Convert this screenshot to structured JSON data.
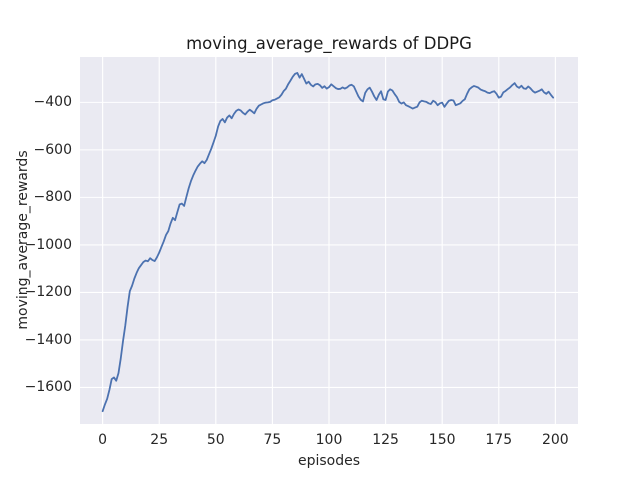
{
  "chart_data": {
    "type": "line",
    "title": "moving_average_rewards of DDPG",
    "xlabel": "episodes",
    "ylabel": "moving_average_rewards",
    "xlim": [
      -10,
      210
    ],
    "ylim": [
      -1754,
      -209
    ],
    "grid": true,
    "legend": false,
    "xticks": {
      "values": [
        0,
        25,
        50,
        75,
        100,
        125,
        150,
        175,
        200
      ],
      "labels": [
        "0",
        "25",
        "50",
        "75",
        "100",
        "125",
        "150",
        "175",
        "200"
      ]
    },
    "yticks": {
      "values": [
        -400,
        -600,
        -800,
        -1000,
        -1200,
        -1400,
        -1600
      ],
      "labels": [
        "−400",
        "−600",
        "−800",
        "−1000",
        "−1200",
        "−1400",
        "−1600"
      ]
    },
    "style": {
      "line_color": "#4C72B0",
      "line_width": 1.8,
      "plot_bg": "#EAEAF2",
      "grid_color": "#FFFFFF",
      "fig_bg": "#FFFFFF",
      "text_color": "#262626"
    },
    "series": [
      {
        "name": "moving_average_rewards",
        "x_start": 0,
        "x_step": 1,
        "y": [
          -1700,
          -1672,
          -1648,
          -1610,
          -1565,
          -1558,
          -1572,
          -1540,
          -1478,
          -1405,
          -1340,
          -1262,
          -1195,
          -1172,
          -1142,
          -1118,
          -1098,
          -1085,
          -1072,
          -1066,
          -1069,
          -1056,
          -1064,
          -1068,
          -1052,
          -1032,
          -1008,
          -985,
          -958,
          -942,
          -910,
          -886,
          -896,
          -862,
          -830,
          -826,
          -836,
          -798,
          -762,
          -732,
          -708,
          -688,
          -670,
          -658,
          -648,
          -656,
          -642,
          -618,
          -595,
          -568,
          -540,
          -502,
          -478,
          -470,
          -484,
          -464,
          -455,
          -467,
          -449,
          -436,
          -430,
          -434,
          -444,
          -451,
          -439,
          -431,
          -438,
          -446,
          -427,
          -414,
          -409,
          -404,
          -401,
          -400,
          -398,
          -391,
          -389,
          -384,
          -379,
          -368,
          -352,
          -342,
          -323,
          -308,
          -292,
          -280,
          -276,
          -296,
          -281,
          -301,
          -321,
          -313,
          -326,
          -333,
          -324,
          -322,
          -328,
          -339,
          -332,
          -342,
          -336,
          -324,
          -332,
          -340,
          -344,
          -343,
          -337,
          -342,
          -337,
          -329,
          -326,
          -333,
          -354,
          -375,
          -389,
          -396,
          -360,
          -345,
          -338,
          -355,
          -375,
          -390,
          -368,
          -353,
          -387,
          -390,
          -355,
          -345,
          -350,
          -365,
          -378,
          -398,
          -405,
          -400,
          -412,
          -416,
          -421,
          -426,
          -422,
          -418,
          -400,
          -393,
          -396,
          -398,
          -404,
          -407,
          -393,
          -399,
          -412,
          -404,
          -401,
          -419,
          -405,
          -393,
          -390,
          -392,
          -412,
          -408,
          -404,
          -394,
          -387,
          -364,
          -345,
          -337,
          -331,
          -334,
          -338,
          -346,
          -350,
          -353,
          -359,
          -361,
          -356,
          -353,
          -364,
          -380,
          -376,
          -358,
          -352,
          -344,
          -337,
          -327,
          -319,
          -333,
          -339,
          -330,
          -341,
          -343,
          -333,
          -341,
          -352,
          -359,
          -355,
          -351,
          -345,
          -358,
          -364,
          -355,
          -368,
          -380
        ]
      }
    ]
  }
}
